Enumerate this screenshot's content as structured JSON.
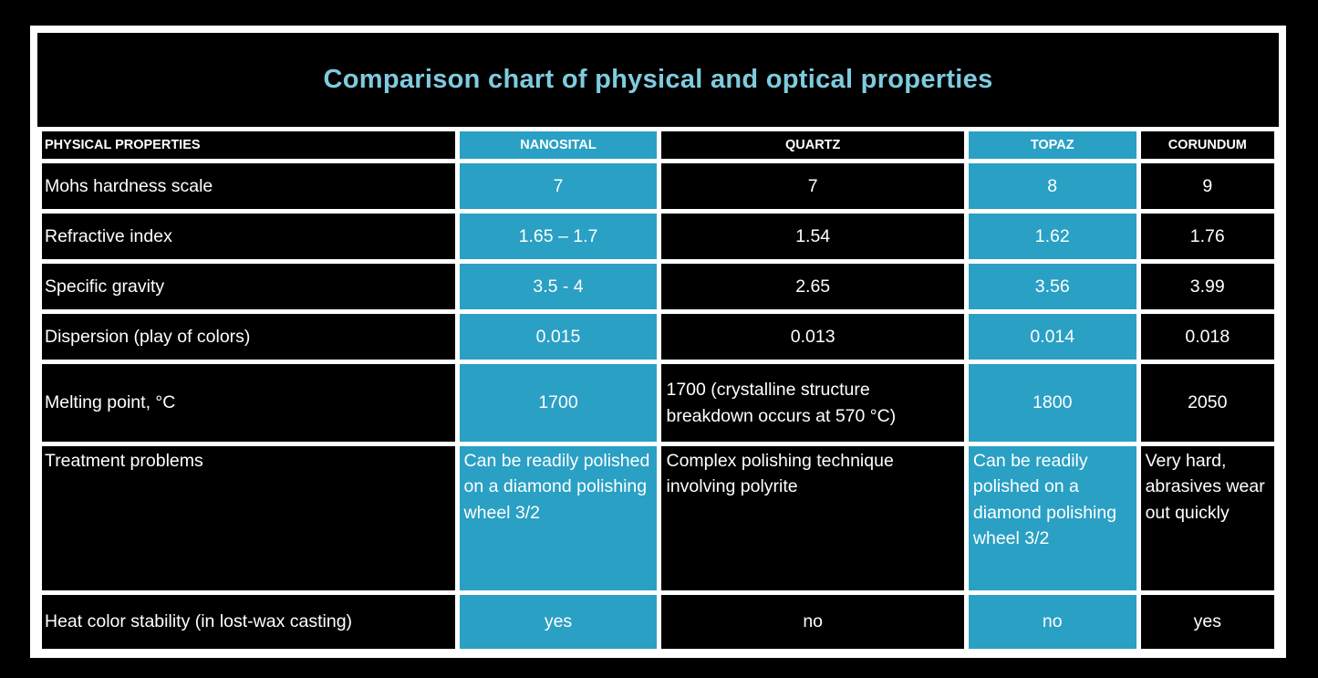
{
  "colors": {
    "accent_cyan": "#2AA0C4",
    "title_cyan": "#7FCBDE",
    "grid_white": "#FFFFFF",
    "cell_black": "#000000"
  },
  "chart_data": {
    "type": "table",
    "title": "Comparison chart of physical and optical properties",
    "columns": [
      "PHYSICAL PROPERTIES",
      "NANOSITAL",
      "QUARTZ",
      "TOPAZ",
      "CORUNDUM"
    ],
    "highlighted_columns": [
      "NANOSITAL",
      "TOPAZ"
    ],
    "rows": [
      {
        "property": "Mohs hardness scale",
        "values": [
          "7",
          "7",
          "8",
          "9"
        ]
      },
      {
        "property": "Refractive index",
        "values": [
          "1.65 – 1.7",
          "1.54",
          "1.62",
          "1.76"
        ]
      },
      {
        "property": "Specific gravity",
        "values": [
          "3.5 - 4",
          "2.65",
          "3.56",
          "3.99"
        ]
      },
      {
        "property": "Dispersion (play of colors)",
        "values": [
          "0.015",
          "0.013",
          "0.014",
          "0.018"
        ]
      },
      {
        "property": "Melting point, °C",
        "values": [
          "1700",
          "1700 (crystalline structure breakdown occurs at 570 °C)",
          "1800",
          "2050"
        ]
      },
      {
        "property": "Treatment problems",
        "values": [
          "Can be readily polished on a diamond polishing wheel 3/2",
          "Complex polishing technique involving polyrite",
          "Can be readily polished on a diamond polishing wheel 3/2",
          "Very hard, abrasives wear out quickly"
        ]
      },
      {
        "property": "Heat color stability (in lost-wax casting)",
        "values": [
          "yes",
          "no",
          "no",
          "yes"
        ]
      }
    ]
  }
}
